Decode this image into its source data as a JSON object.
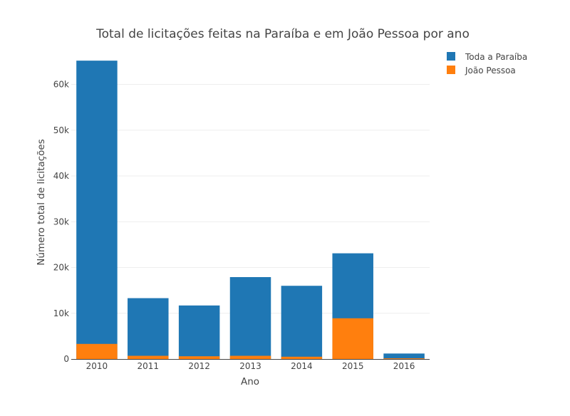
{
  "chart_data": {
    "type": "bar",
    "barmode": "overlay",
    "title": "Total de licitações feitas na Paraíba e em João Pessoa por ano",
    "xlabel": "Ano",
    "ylabel": "Número total de licitações",
    "categories": [
      "2010",
      "2011",
      "2012",
      "2013",
      "2014",
      "2015",
      "2016"
    ],
    "ylim": [
      0,
      66000
    ],
    "yticks": [
      0,
      10000,
      20000,
      30000,
      40000,
      50000,
      60000
    ],
    "ytick_labels": [
      "0",
      "10k",
      "20k",
      "30k",
      "40k",
      "50k",
      "60k"
    ],
    "grid": true,
    "legend_position": "top-right",
    "series": [
      {
        "name": "Toda a Paraíba",
        "color": "#1f77b4",
        "values": [
          65200,
          13300,
          11700,
          17900,
          16000,
          23100,
          1200
        ]
      },
      {
        "name": "João Pessoa",
        "color": "#ff7f0e",
        "values": [
          3300,
          700,
          600,
          700,
          500,
          8900,
          150
        ]
      }
    ]
  }
}
